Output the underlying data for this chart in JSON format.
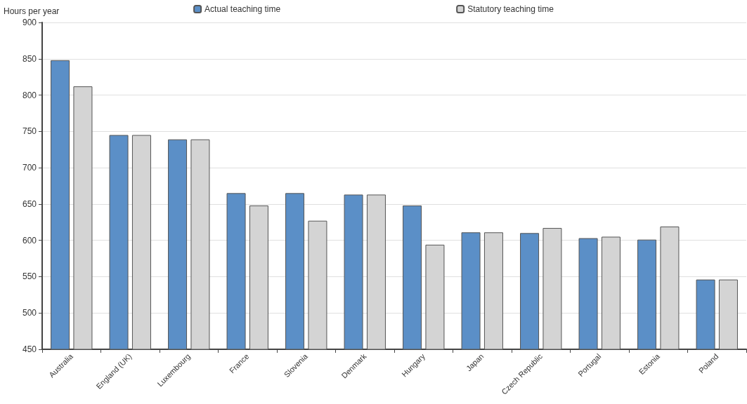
{
  "chart_data": {
    "type": "bar",
    "ylabel": "Hours per year",
    "categories": [
      "Australia",
      "England (UK)",
      "Luxembourg",
      "France",
      "Slovenia",
      "Denmark",
      "Hungary",
      "Japan",
      "Czech Republic",
      "Portugal",
      "Estonia",
      "Poland"
    ],
    "series": [
      {
        "name": "Actual teaching time",
        "color": "#5b8fc7",
        "values": [
          848,
          745,
          739,
          665,
          665,
          663,
          648,
          611,
          610,
          603,
          601,
          546
        ]
      },
      {
        "name": "Statutory teaching time",
        "color": "#d4d4d4",
        "values": [
          812,
          745,
          739,
          648,
          627,
          663,
          594,
          611,
          617,
          605,
          619,
          546
        ]
      }
    ],
    "ylim": [
      450,
      900
    ],
    "yticks": [
      450,
      500,
      550,
      600,
      650,
      700,
      750,
      800,
      850,
      900
    ],
    "grid": "y",
    "legend": "top"
  }
}
